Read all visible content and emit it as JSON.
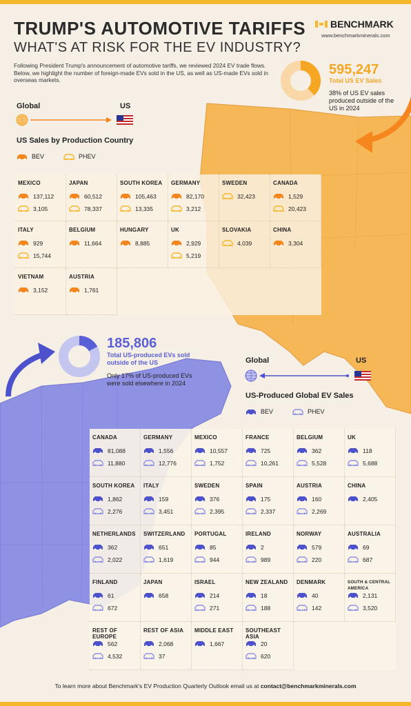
{
  "header": {
    "title": "TRUMP'S AUTOMOTIVE TARIFFS",
    "subtitle": "WHAT'S AT RISK FOR THE EV INDUSTRY?",
    "logo_text": "BENCHMARK",
    "logo_url": "www.benchmarkminerals.com",
    "intro": "Following President Trump's announcement of automotive tariffs, we reviewed 2024 EV trade flows. Below, we highlight the number of foreign-made EVs sold in the US, as well as US-made EVs sold in overseas markets."
  },
  "imports": {
    "total": "595,247",
    "total_label": "Total US EV Sales",
    "share_text": "38% of US EV sales produced outside of the US in 2024",
    "share_pct": 38,
    "flow_from": "Global",
    "flow_to": "US",
    "section_title": "US Sales by Production Country",
    "legend_bev": "BEV",
    "legend_phev": "PHEV",
    "countries": [
      {
        "name": "MEXICO",
        "bev": "137,112",
        "phev": "3,105"
      },
      {
        "name": "JAPAN",
        "bev": "60,512",
        "phev": "78,337"
      },
      {
        "name": "SOUTH KOREA",
        "bev": "105,463",
        "phev": "13,335"
      },
      {
        "name": "GERMANY",
        "bev": "82,170",
        "phev": "3,212"
      },
      {
        "name": "SWEDEN",
        "bev": "",
        "phev": "32,423"
      },
      {
        "name": "CANADA",
        "bev": "1,529",
        "phev": "20,423"
      },
      {
        "name": "ITALY",
        "bev": "929",
        "phev": "15,744"
      },
      {
        "name": "BELGIUM",
        "bev": "11,664",
        "phev": ""
      },
      {
        "name": "HUNGARY",
        "bev": "8,885",
        "phev": ""
      },
      {
        "name": "UK",
        "bev": "2,929",
        "phev": "5,219"
      },
      {
        "name": "SLOVAKIA",
        "bev": "",
        "phev": "4,039"
      },
      {
        "name": "CHINA",
        "bev": "3,304",
        "phev": ""
      },
      {
        "name": "VIETNAM",
        "bev": "3,152",
        "phev": ""
      },
      {
        "name": "AUSTRIA",
        "bev": "1,761",
        "phev": ""
      }
    ]
  },
  "exports": {
    "total": "185,806",
    "total_label": "Total US-produced EVs sold outside of the US",
    "share_text": "Only 17% of US-produced EVs were sold elsewhere in 2024",
    "share_pct": 17,
    "flow_from": "US",
    "flow_to": "Global",
    "section_title": "US-Produced Global EV Sales",
    "legend_bev": "BEV",
    "legend_phev": "PHEV",
    "countries": [
      {
        "name": "CANADA",
        "bev": "81,088",
        "phev": "11,880"
      },
      {
        "name": "GERMANY",
        "bev": "1,556",
        "phev": "12,776"
      },
      {
        "name": "MEXICO",
        "bev": "10,557",
        "phev": "1,752"
      },
      {
        "name": "FRANCE",
        "bev": "725",
        "phev": "10,261"
      },
      {
        "name": "BELGIUM",
        "bev": "362",
        "phev": "5,528"
      },
      {
        "name": "UK",
        "bev": "118",
        "phev": "5,688"
      },
      {
        "name": "SOUTH KOREA",
        "bev": "1,862",
        "phev": "2,276"
      },
      {
        "name": "ITALY",
        "bev": "159",
        "phev": "3,451"
      },
      {
        "name": "SWEDEN",
        "bev": "376",
        "phev": "2,395"
      },
      {
        "name": "SPAIN",
        "bev": "175",
        "phev": "2,337"
      },
      {
        "name": "AUSTRIA",
        "bev": "160",
        "phev": "2,269"
      },
      {
        "name": "CHINA",
        "bev": "2,405",
        "phev": ""
      },
      {
        "name": "NETHERLANDS",
        "bev": "362",
        "phev": "2,022"
      },
      {
        "name": "SWITZERLAND",
        "bev": "651",
        "phev": "1,619"
      },
      {
        "name": "PORTUGAL",
        "bev": "85",
        "phev": "944"
      },
      {
        "name": "IRELAND",
        "bev": "2",
        "phev": "989"
      },
      {
        "name": "NORWAY",
        "bev": "579",
        "phev": "220"
      },
      {
        "name": "AUSTRALIA",
        "bev": "69",
        "phev": "687"
      },
      {
        "name": "FINLAND",
        "bev": "61",
        "phev": "672"
      },
      {
        "name": "JAPAN",
        "bev": "658",
        "phev": ""
      },
      {
        "name": "ISRAEL",
        "bev": "214",
        "phev": "271"
      },
      {
        "name": "NEW ZEALAND",
        "bev": "18",
        "phev": "188"
      },
      {
        "name": "DENMARK",
        "bev": "40",
        "phev": "142"
      },
      {
        "name": "SOUTH & CENTRAL AMERICA",
        "bev": "2,131",
        "phev": "3,520"
      },
      {
        "name": "REST OF EUROPE",
        "bev": "562",
        "phev": "4,532"
      },
      {
        "name": "REST OF ASIA",
        "bev": "2,068",
        "phev": "37"
      },
      {
        "name": "MIDDLE EAST",
        "bev": "1,667",
        "phev": ""
      },
      {
        "name": "SOUTHEAST ASIA",
        "bev": "20",
        "phev": "620"
      }
    ]
  },
  "footer": {
    "text": "To learn more about Benchmark's EV Production Quarterly Outlook email us at",
    "email": "contact@benchmarkminerals.com"
  },
  "colors": {
    "orange": "#f5a623",
    "orange_light": "#f8c57a",
    "purple": "#5b5fd6",
    "purple_light": "#9a9ce6",
    "accent_gold": "#f5b82e",
    "map_orange": "#f6b757",
    "map_purple": "#8f91e3"
  },
  "icons": [
    "globe-icon",
    "us-flag-icon",
    "arrow-right-icon",
    "arrow-left-icon",
    "bev-car-icon",
    "phev-car-icon",
    "curved-arrow-icon"
  ]
}
